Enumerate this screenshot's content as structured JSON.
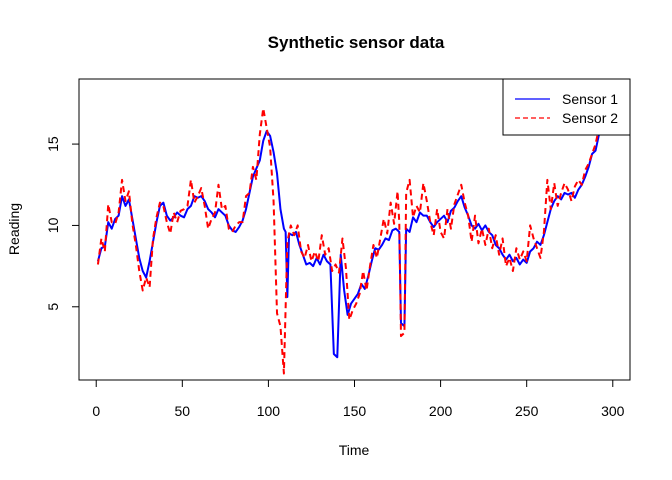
{
  "chart_data": {
    "type": "line",
    "title": "Synthetic sensor data",
    "xlabel": "Time",
    "ylabel": "Reading",
    "xlim": [
      -10,
      310
    ],
    "ylim": [
      0.5,
      19
    ],
    "xticks": [
      0,
      50,
      100,
      150,
      200,
      250,
      300
    ],
    "yticks": [
      5,
      10,
      15
    ],
    "grid": false,
    "legend_position": "top-right",
    "series": [
      {
        "name": "Sensor 1",
        "color": "#0000ff",
        "style": "solid",
        "points": [
          [
            1,
            7.8
          ],
          [
            3,
            8.6
          ],
          [
            5,
            8.7
          ],
          [
            7,
            10.2
          ],
          [
            9,
            9.8
          ],
          [
            11,
            10.4
          ],
          [
            13,
            10.6
          ],
          [
            15,
            11.8
          ],
          [
            17,
            11.2
          ],
          [
            19,
            11.6
          ],
          [
            21,
            10.4
          ],
          [
            23,
            9.2
          ],
          [
            25,
            8.0
          ],
          [
            27,
            7.2
          ],
          [
            29,
            6.8
          ],
          [
            31,
            7.8
          ],
          [
            33,
            9.0
          ],
          [
            35,
            10.2
          ],
          [
            37,
            11.2
          ],
          [
            39,
            11.4
          ],
          [
            41,
            10.6
          ],
          [
            43,
            10.3
          ],
          [
            45,
            10.5
          ],
          [
            47,
            10.8
          ],
          [
            49,
            10.6
          ],
          [
            51,
            10.5
          ],
          [
            53,
            11.0
          ],
          [
            55,
            11.2
          ],
          [
            57,
            11.8
          ],
          [
            59,
            11.7
          ],
          [
            61,
            11.8
          ],
          [
            63,
            11.5
          ],
          [
            65,
            11.0
          ],
          [
            67,
            10.8
          ],
          [
            69,
            10.5
          ],
          [
            71,
            11.0
          ],
          [
            73,
            10.8
          ],
          [
            75,
            10.6
          ],
          [
            77,
            10.0
          ],
          [
            79,
            9.7
          ],
          [
            81,
            9.6
          ],
          [
            83,
            9.9
          ],
          [
            85,
            10.3
          ],
          [
            87,
            11.0
          ],
          [
            89,
            12.0
          ],
          [
            91,
            13.0
          ],
          [
            93,
            13.5
          ],
          [
            95,
            14.0
          ],
          [
            97,
            15.2
          ],
          [
            99,
            15.8
          ],
          [
            101,
            15.5
          ],
          [
            103,
            14.5
          ],
          [
            105,
            13.2
          ],
          [
            107,
            11.0
          ],
          [
            109,
            9.8
          ],
          [
            110,
            9.6
          ],
          [
            111,
            5.6
          ],
          [
            112,
            9.5
          ],
          [
            114,
            9.4
          ],
          [
            116,
            9.6
          ],
          [
            118,
            8.8
          ],
          [
            120,
            8.2
          ],
          [
            122,
            7.6
          ],
          [
            124,
            7.7
          ],
          [
            126,
            7.5
          ],
          [
            128,
            8.0
          ],
          [
            130,
            7.6
          ],
          [
            132,
            8.2
          ],
          [
            134,
            7.8
          ],
          [
            136,
            7.6
          ],
          [
            138,
            2.1
          ],
          [
            140,
            1.9
          ],
          [
            142,
            8.2
          ],
          [
            144,
            6.0
          ],
          [
            146,
            4.5
          ],
          [
            148,
            5.2
          ],
          [
            150,
            5.5
          ],
          [
            152,
            5.8
          ],
          [
            154,
            6.4
          ],
          [
            156,
            6.1
          ],
          [
            158,
            6.9
          ],
          [
            160,
            7.8
          ],
          [
            162,
            8.6
          ],
          [
            164,
            8.5
          ],
          [
            166,
            8.8
          ],
          [
            168,
            9.2
          ],
          [
            170,
            9.1
          ],
          [
            172,
            9.7
          ],
          [
            174,
            9.8
          ],
          [
            176,
            9.6
          ],
          [
            177,
            4.0
          ],
          [
            179,
            3.8
          ],
          [
            180,
            9.8
          ],
          [
            182,
            9.6
          ],
          [
            184,
            10.5
          ],
          [
            186,
            10.2
          ],
          [
            188,
            10.8
          ],
          [
            190,
            10.6
          ],
          [
            192,
            10.6
          ],
          [
            194,
            10.2
          ],
          [
            196,
            9.9
          ],
          [
            198,
            10.2
          ],
          [
            200,
            10.4
          ],
          [
            202,
            10.6
          ],
          [
            204,
            10.2
          ],
          [
            206,
            10.9
          ],
          [
            208,
            11.1
          ],
          [
            210,
            11.5
          ],
          [
            212,
            11.8
          ],
          [
            214,
            11.1
          ],
          [
            216,
            10.6
          ],
          [
            218,
            10.0
          ],
          [
            220,
            9.8
          ],
          [
            222,
            10.1
          ],
          [
            224,
            9.7
          ],
          [
            226,
            10.0
          ],
          [
            228,
            9.6
          ],
          [
            230,
            9.4
          ],
          [
            232,
            8.8
          ],
          [
            234,
            8.6
          ],
          [
            236,
            8.2
          ],
          [
            238,
            7.9
          ],
          [
            240,
            8.2
          ],
          [
            242,
            7.8
          ],
          [
            244,
            8.0
          ],
          [
            246,
            7.6
          ],
          [
            248,
            7.9
          ],
          [
            250,
            7.7
          ],
          [
            252,
            8.4
          ],
          [
            254,
            8.6
          ],
          [
            256,
            9.0
          ],
          [
            258,
            8.8
          ],
          [
            260,
            9.4
          ],
          [
            262,
            10.2
          ],
          [
            264,
            11.0
          ],
          [
            266,
            11.5
          ],
          [
            268,
            11.8
          ],
          [
            270,
            11.6
          ],
          [
            272,
            12.0
          ],
          [
            274,
            11.9
          ],
          [
            276,
            12.0
          ],
          [
            278,
            11.7
          ],
          [
            280,
            12.2
          ],
          [
            282,
            12.5
          ],
          [
            284,
            13.0
          ],
          [
            286,
            13.6
          ],
          [
            288,
            14.4
          ],
          [
            290,
            14.6
          ],
          [
            292,
            15.6
          ],
          [
            294,
            16.2
          ]
        ]
      },
      {
        "name": "Sensor 2",
        "color": "#ff0000",
        "style": "dashed",
        "points": [
          [
            1,
            7.6
          ],
          [
            3,
            9.2
          ],
          [
            5,
            8.4
          ],
          [
            7,
            11.3
          ],
          [
            9,
            10.2
          ],
          [
            11,
            10.1
          ],
          [
            13,
            10.8
          ],
          [
            15,
            12.8
          ],
          [
            17,
            11.5
          ],
          [
            19,
            12.1
          ],
          [
            21,
            10.1
          ],
          [
            23,
            8.8
          ],
          [
            25,
            7.2
          ],
          [
            27,
            6.0
          ],
          [
            29,
            6.8
          ],
          [
            31,
            6.2
          ],
          [
            33,
            9.2
          ],
          [
            35,
            10.5
          ],
          [
            37,
            11.4
          ],
          [
            39,
            11.2
          ],
          [
            41,
            10.2
          ],
          [
            43,
            9.5
          ],
          [
            45,
            10.8
          ],
          [
            47,
            10.2
          ],
          [
            49,
            10.9
          ],
          [
            51,
            11.0
          ],
          [
            53,
            11.2
          ],
          [
            55,
            12.8
          ],
          [
            57,
            11.4
          ],
          [
            59,
            11.8
          ],
          [
            61,
            12.3
          ],
          [
            63,
            11.2
          ],
          [
            65,
            9.8
          ],
          [
            67,
            10.4
          ],
          [
            69,
            10.8
          ],
          [
            71,
            12.5
          ],
          [
            73,
            11.0
          ],
          [
            75,
            11.2
          ],
          [
            77,
            9.8
          ],
          [
            79,
            9.6
          ],
          [
            81,
            10.0
          ],
          [
            83,
            10.2
          ],
          [
            85,
            10.2
          ],
          [
            87,
            11.8
          ],
          [
            89,
            12.0
          ],
          [
            91,
            13.6
          ],
          [
            93,
            12.8
          ],
          [
            95,
            15.6
          ],
          [
            97,
            17.2
          ],
          [
            99,
            16.0
          ],
          [
            101,
            14.8
          ],
          [
            103,
            11.5
          ],
          [
            105,
            4.6
          ],
          [
            107,
            3.8
          ],
          [
            109,
            0.9
          ],
          [
            111,
            9.0
          ],
          [
            113,
            10.0
          ],
          [
            115,
            9.4
          ],
          [
            117,
            10.0
          ],
          [
            119,
            8.4
          ],
          [
            121,
            8.0
          ],
          [
            123,
            8.8
          ],
          [
            125,
            7.8
          ],
          [
            127,
            8.4
          ],
          [
            129,
            7.8
          ],
          [
            131,
            9.4
          ],
          [
            133,
            8.2
          ],
          [
            135,
            8.6
          ],
          [
            137,
            7.2
          ],
          [
            139,
            7.6
          ],
          [
            141,
            7.1
          ],
          [
            143,
            9.2
          ],
          [
            145,
            7.4
          ],
          [
            147,
            4.2
          ],
          [
            149,
            4.8
          ],
          [
            151,
            5.2
          ],
          [
            153,
            5.8
          ],
          [
            155,
            7.2
          ],
          [
            157,
            6.0
          ],
          [
            159,
            7.5
          ],
          [
            161,
            8.8
          ],
          [
            163,
            8.0
          ],
          [
            165,
            9.2
          ],
          [
            167,
            10.4
          ],
          [
            169,
            9.5
          ],
          [
            171,
            11.4
          ],
          [
            173,
            10.1
          ],
          [
            175,
            12.1
          ],
          [
            176,
            10.2
          ],
          [
            177,
            3.2
          ],
          [
            179,
            3.4
          ],
          [
            180,
            12.0
          ],
          [
            182,
            12.8
          ],
          [
            184,
            10.5
          ],
          [
            186,
            11.2
          ],
          [
            188,
            10.8
          ],
          [
            190,
            12.6
          ],
          [
            192,
            11.5
          ],
          [
            194,
            10.2
          ],
          [
            196,
            9.4
          ],
          [
            198,
            11.0
          ],
          [
            200,
            9.6
          ],
          [
            202,
            9.2
          ],
          [
            204,
            11.0
          ],
          [
            206,
            9.8
          ],
          [
            208,
            11.3
          ],
          [
            210,
            11.9
          ],
          [
            212,
            12.5
          ],
          [
            214,
            11.4
          ],
          [
            216,
            10.6
          ],
          [
            218,
            9.0
          ],
          [
            220,
            10.6
          ],
          [
            222,
            8.9
          ],
          [
            224,
            9.8
          ],
          [
            226,
            8.8
          ],
          [
            228,
            9.8
          ],
          [
            230,
            8.6
          ],
          [
            232,
            9.4
          ],
          [
            234,
            8.2
          ],
          [
            236,
            9.2
          ],
          [
            238,
            7.5
          ],
          [
            240,
            8.0
          ],
          [
            242,
            7.2
          ],
          [
            244,
            8.6
          ],
          [
            246,
            7.9
          ],
          [
            248,
            8.4
          ],
          [
            250,
            7.8
          ],
          [
            252,
            10.0
          ],
          [
            254,
            9.2
          ],
          [
            256,
            8.6
          ],
          [
            258,
            8.0
          ],
          [
            260,
            9.6
          ],
          [
            262,
            12.8
          ],
          [
            264,
            11.0
          ],
          [
            266,
            12.6
          ],
          [
            268,
            11.2
          ],
          [
            270,
            12.0
          ],
          [
            272,
            12.6
          ],
          [
            274,
            12.2
          ],
          [
            276,
            11.5
          ],
          [
            278,
            12.4
          ],
          [
            280,
            12.8
          ],
          [
            282,
            12.5
          ],
          [
            284,
            13.4
          ],
          [
            286,
            13.8
          ],
          [
            288,
            14.4
          ],
          [
            290,
            15.0
          ],
          [
            292,
            16.0
          ],
          [
            294,
            16.8
          ]
        ]
      }
    ]
  }
}
